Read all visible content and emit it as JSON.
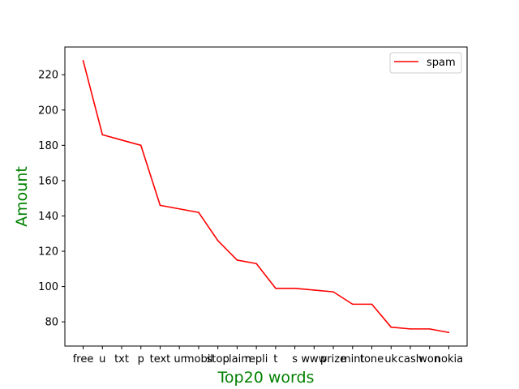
{
  "chart_data": {
    "type": "line",
    "title": "",
    "xlabel": "Top20 words",
    "ylabel": "Amount",
    "label_color": "#008000",
    "categories": [
      "free",
      "u",
      "txt",
      "p",
      "text",
      "ur",
      "mobil",
      "stop",
      "claim",
      "repli",
      "t",
      "s",
      "www",
      "prize",
      "mint",
      "tone",
      "uk",
      "cash",
      "won",
      "nokia"
    ],
    "series": [
      {
        "name": "spam",
        "color": "#ff0000",
        "values": [
          228,
          186,
          183,
          180,
          146,
          144,
          142,
          126,
          115,
          113,
          99,
          99,
          98,
          97,
          90,
          90,
          77,
          76,
          76,
          74
        ]
      }
    ],
    "ylim": [
      66.3,
      235.7
    ],
    "yticks": [
      80,
      100,
      120,
      140,
      160,
      180,
      200,
      220
    ],
    "grid": false,
    "legend_position": "top-right"
  }
}
